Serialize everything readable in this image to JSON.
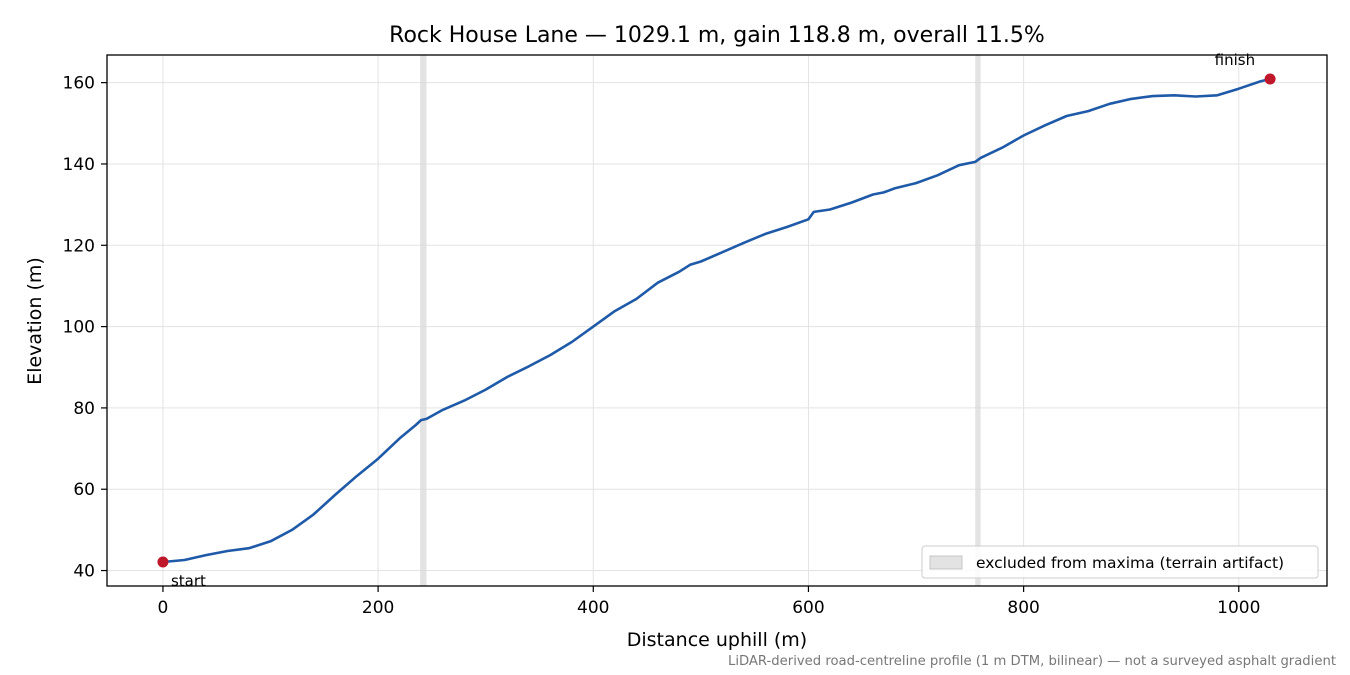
{
  "chart_data": {
    "type": "line",
    "title": "Rock House Lane — 1029.1 m, gain 118.8 m, overall 11.5%",
    "xlabel": "Distance uphill (m)",
    "ylabel": "Elevation (m)",
    "xlim": [
      -52,
      1082
    ],
    "ylim": [
      36.2,
      166.8
    ],
    "xticks": [
      0,
      200,
      400,
      600,
      800,
      1000
    ],
    "yticks": [
      40,
      60,
      80,
      100,
      120,
      140,
      160
    ],
    "grid": true,
    "legend_position": "lower-right",
    "footnote": "LiDAR-derived road-centreline profile (1 m DTM, bilinear) — not a surveyed asphalt gradient",
    "excluded_bands": {
      "label": "excluded from maxima (terrain artifact)",
      "ranges": [
        [
          239,
          245
        ],
        [
          755,
          760
        ]
      ],
      "color": "#d9d9d9"
    },
    "series": [
      {
        "color": "#1f5aa8",
        "x": [
          0,
          20,
          40,
          60,
          80,
          100,
          120,
          140,
          160,
          180,
          200,
          220,
          235,
          240,
          245,
          260,
          280,
          300,
          320,
          340,
          360,
          380,
          400,
          420,
          440,
          460,
          480,
          490,
          500,
          520,
          540,
          560,
          580,
          600,
          605,
          620,
          640,
          660,
          670,
          680,
          700,
          720,
          740,
          755,
          760,
          780,
          800,
          820,
          840,
          860,
          880,
          900,
          920,
          940,
          960,
          980,
          1000,
          1020,
          1029.1
        ],
        "values": [
          42.1,
          42.6,
          43.8,
          44.8,
          45.5,
          47.2,
          50.0,
          53.8,
          58.6,
          63.2,
          67.5,
          72.5,
          75.8,
          77.0,
          77.3,
          79.5,
          81.8,
          84.5,
          87.6,
          90.2,
          93.0,
          96.2,
          100.0,
          103.8,
          106.8,
          110.8,
          113.5,
          115.2,
          116.0,
          118.3,
          120.6,
          122.8,
          124.5,
          126.4,
          128.2,
          128.8,
          130.5,
          132.5,
          133.0,
          134.0,
          135.3,
          137.2,
          139.7,
          140.5,
          141.5,
          144.0,
          147.0,
          149.5,
          151.8,
          153.0,
          154.8,
          156.0,
          156.7,
          156.9,
          156.6,
          156.9,
          158.5,
          160.3,
          160.9
        ]
      }
    ],
    "points": [
      {
        "label": "start",
        "x": 0,
        "y": 42.1,
        "color": "#c0182b"
      },
      {
        "label": "finish",
        "x": 1029.1,
        "y": 160.9,
        "color": "#c0182b"
      }
    ]
  }
}
